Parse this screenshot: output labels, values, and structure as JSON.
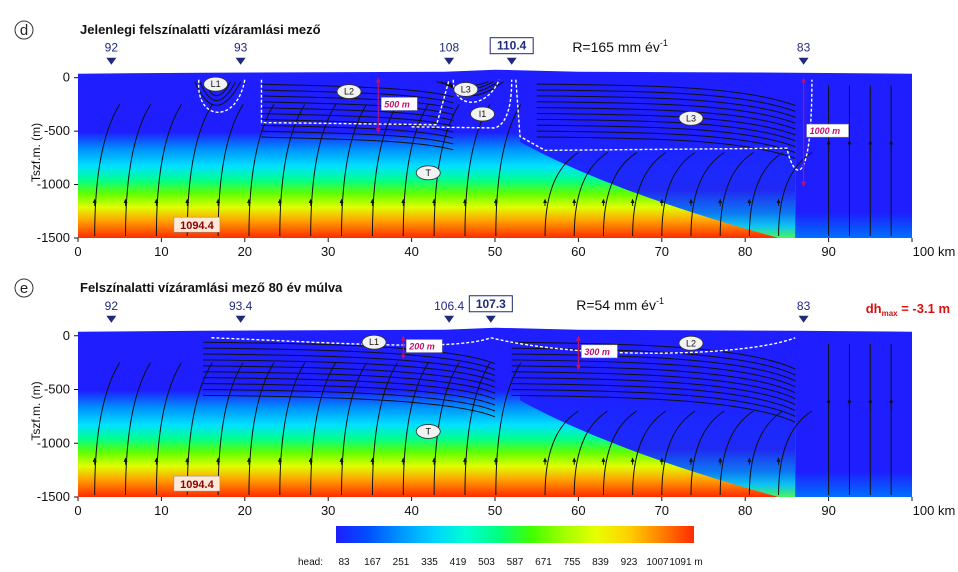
{
  "colors": {
    "low": "#1e1eff",
    "high": "#ff2a00",
    "flowline": "#111111",
    "watertable": "#ffffff",
    "depth_marker": "#c0106e",
    "dh": "#d81010"
  },
  "colorscale": [
    "#1e1eff",
    "#0050ff",
    "#0096ff",
    "#00d2ff",
    "#00ffd0",
    "#00ff80",
    "#40ff00",
    "#a0ff00",
    "#e8ff00",
    "#ffd000",
    "#ff8000",
    "#ff2a00"
  ],
  "panels": [
    {
      "letter": "d",
      "title": "Jelenlegi felszínalatti vízáramlási mező",
      "recharge_label": "R=165 mm év",
      "recharge_exp": "-1",
      "surface_heads": [
        {
          "x": 4,
          "label": "92",
          "boxed": false
        },
        {
          "x": 19.5,
          "label": "93",
          "boxed": false
        },
        {
          "x": 44.5,
          "label": "108",
          "boxed": false
        },
        {
          "x": 52,
          "label": "110.4",
          "boxed": true
        },
        {
          "x": 87,
          "label": "83",
          "boxed": false
        }
      ],
      "zones": [
        {
          "label": "L1",
          "x": 16.5,
          "y": -60
        },
        {
          "label": "L2",
          "x": 32.5,
          "y": -130
        },
        {
          "label": "L3",
          "x": 46.5,
          "y": -110
        },
        {
          "label": "I1",
          "x": 48.5,
          "y": -340
        },
        {
          "label": "L3",
          "x": 73.5,
          "y": -380
        },
        {
          "label": "T",
          "x": 42,
          "y": -890
        }
      ],
      "depth_markers": [
        {
          "x": 36,
          "top": 0,
          "bottom": -500,
          "label": "500 m"
        },
        {
          "x": 87,
          "top": 0,
          "bottom": -1000,
          "label": "1000 m"
        }
      ],
      "deep_head_label": "1094.4",
      "ylabel": "Tszf.m. (m)",
      "dh_label": "",
      "dh_sub": "",
      "dh_value": ""
    },
    {
      "letter": "e",
      "title": "Felszínalatti vízáramlási mező 80 év múlva",
      "recharge_label": "R=54 mm év",
      "recharge_exp": "-1",
      "surface_heads": [
        {
          "x": 4,
          "label": "92",
          "boxed": false
        },
        {
          "x": 19.5,
          "label": "93.4",
          "boxed": false
        },
        {
          "x": 44.5,
          "label": "106.4",
          "boxed": false
        },
        {
          "x": 49.5,
          "label": "107.3",
          "boxed": true
        },
        {
          "x": 87,
          "label": "83",
          "boxed": false
        }
      ],
      "zones": [
        {
          "label": "L1",
          "x": 35.5,
          "y": -60
        },
        {
          "label": "L2",
          "x": 73.5,
          "y": -70
        },
        {
          "label": "T",
          "x": 42,
          "y": -890
        }
      ],
      "depth_markers": [
        {
          "x": 39,
          "top": 0,
          "bottom": -200,
          "label": "200 m"
        },
        {
          "x": 60,
          "top": 0,
          "bottom": -300,
          "label": "300 m"
        }
      ],
      "deep_head_label": "1094.4",
      "ylabel": "Tszf.m. (m)",
      "dh_label": "dh",
      "dh_sub": "max",
      "dh_value": "= -3.1 m"
    }
  ],
  "axis": {
    "x_ticks": [
      0,
      10,
      20,
      30,
      40,
      50,
      60,
      70,
      80,
      90,
      100
    ],
    "x_unit": "km",
    "x_last_label": "100 km",
    "y_ticks": [
      0,
      -500,
      -1000,
      -1500
    ],
    "x_range": [
      0,
      100
    ],
    "y_range": [
      -1500,
      100
    ]
  },
  "colorbar": {
    "label": "head:",
    "ticks": [
      "83",
      "167",
      "251",
      "335",
      "419",
      "503",
      "587",
      "671",
      "755",
      "839",
      "923",
      "1007",
      "1091 m"
    ]
  }
}
